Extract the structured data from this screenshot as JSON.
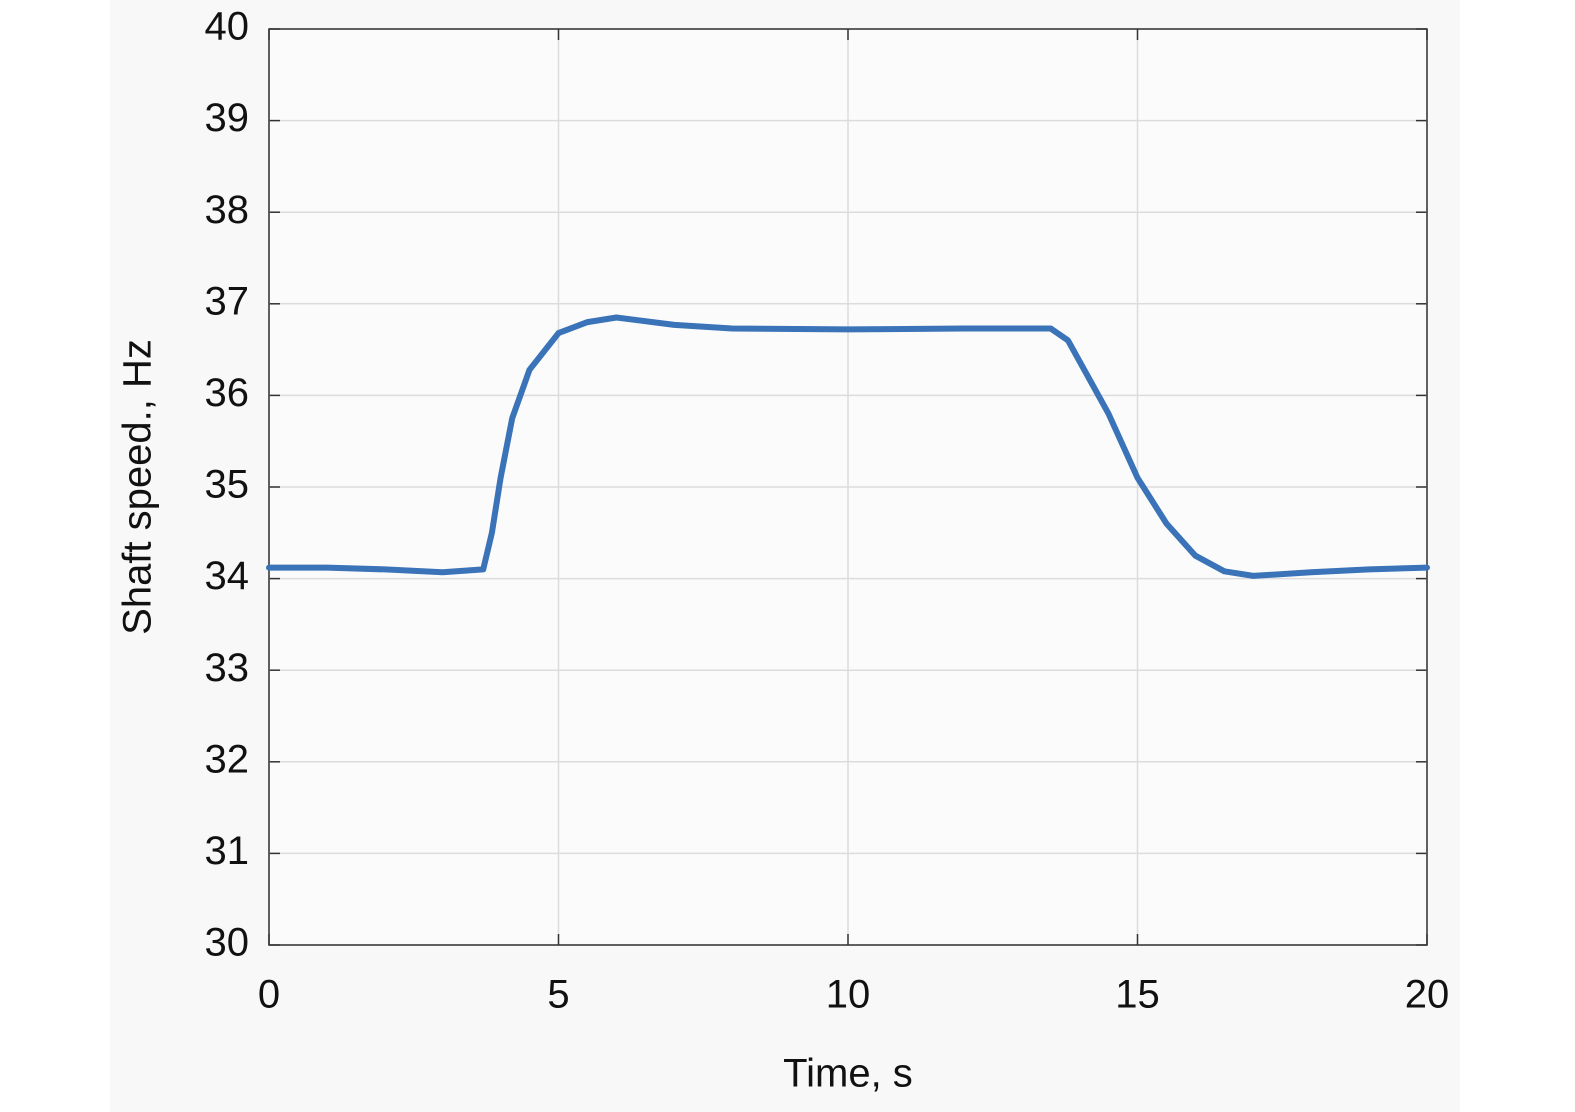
{
  "chart_data": {
    "type": "line",
    "xlabel": "Time, s",
    "ylabel": "Shaft speed., Hz",
    "x": [
      0,
      1,
      2,
      3,
      3.7,
      3.85,
      4.0,
      4.2,
      4.5,
      5,
      5.5,
      6,
      7,
      8,
      10,
      12,
      13.5,
      13.8,
      14.5,
      15,
      15.5,
      16,
      16.5,
      17,
      18,
      19,
      20
    ],
    "values": [
      34.12,
      34.12,
      34.1,
      34.07,
      34.1,
      34.5,
      35.1,
      35.75,
      36.28,
      36.68,
      36.8,
      36.85,
      36.77,
      36.73,
      36.72,
      36.73,
      36.73,
      36.6,
      35.8,
      35.1,
      34.6,
      34.25,
      34.08,
      34.03,
      34.07,
      34.1,
      34.12
    ],
    "color": "#3a73b8",
    "xlim": [
      0,
      20
    ],
    "xticks": [
      0,
      5,
      10,
      15,
      20
    ],
    "ylim": [
      30,
      40
    ],
    "yticks": [
      30,
      31,
      32,
      33,
      34,
      35,
      36,
      37,
      38,
      39,
      40
    ],
    "grid": true
  }
}
